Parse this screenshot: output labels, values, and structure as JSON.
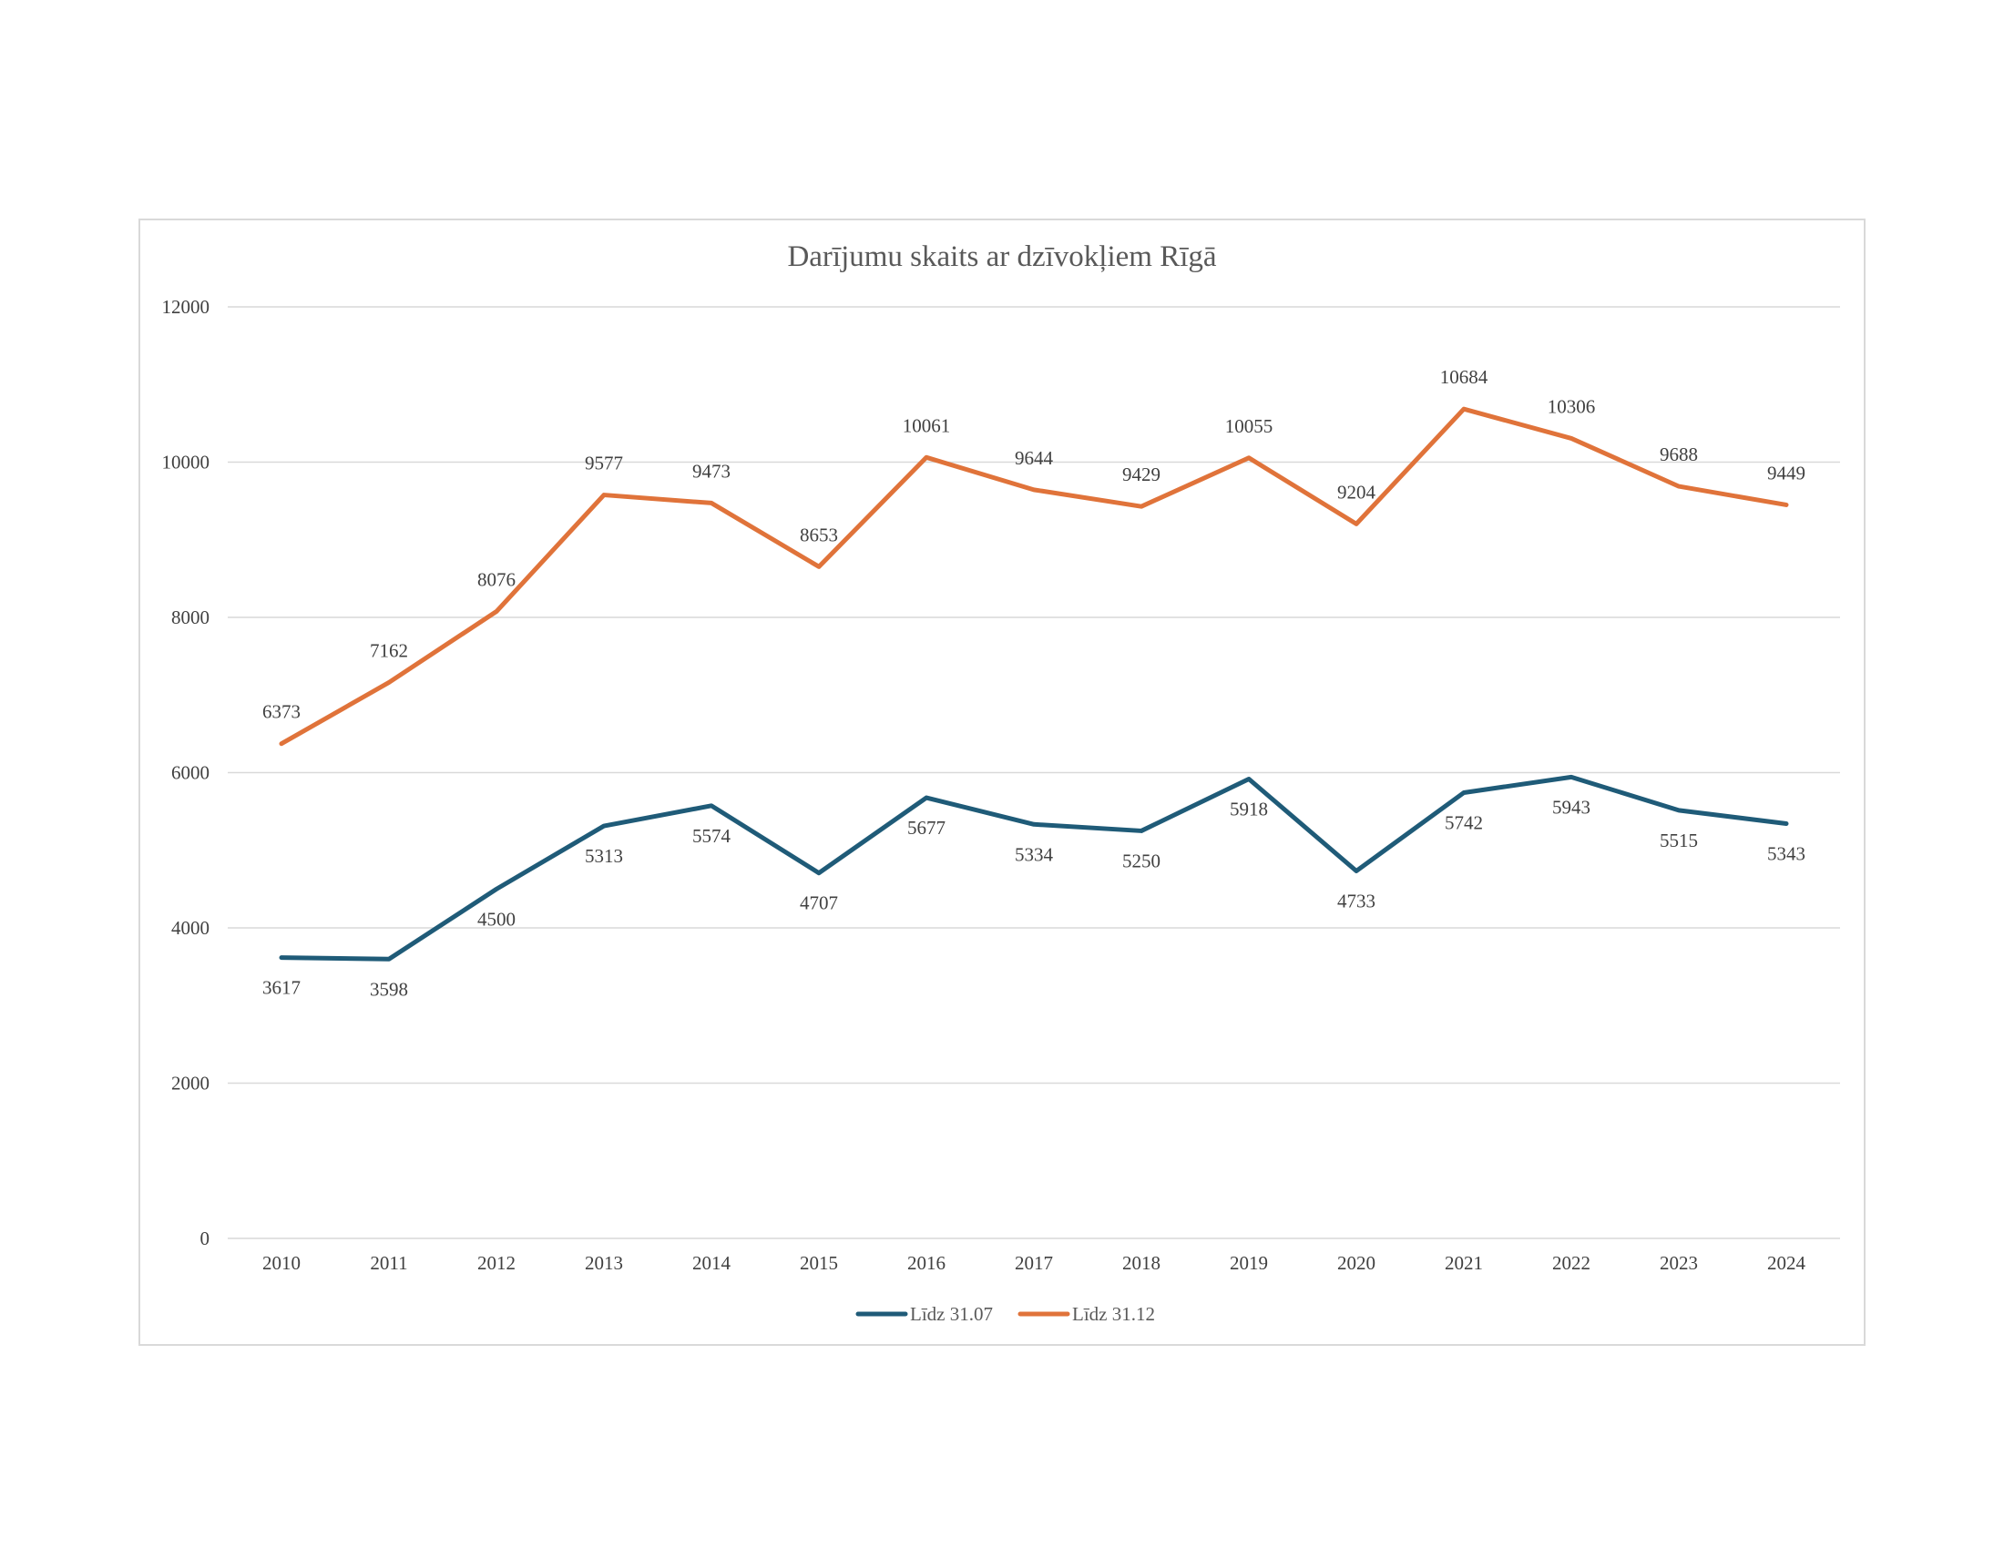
{
  "chart_data": {
    "type": "line",
    "title": "Darījumu skaits ar dzīvokļiem Rīgā",
    "xlabel": "",
    "ylabel": "",
    "ylim": [
      0,
      12000
    ],
    "yticks": [
      0,
      2000,
      4000,
      6000,
      8000,
      10000,
      12000
    ],
    "grid": true,
    "legend_position": "bottom",
    "categories": [
      "2010",
      "2011",
      "2012",
      "2013",
      "2014",
      "2015",
      "2016",
      "2017",
      "2018",
      "2019",
      "2020",
      "2021",
      "2022",
      "2023",
      "2024"
    ],
    "series": [
      {
        "name": "Līdz 31.07",
        "color": "#1f5b78",
        "label_position": "below",
        "values": [
          3617,
          3598,
          4500,
          5313,
          5574,
          4707,
          5677,
          5334,
          5250,
          5918,
          4733,
          5742,
          5943,
          5515,
          5343
        ]
      },
      {
        "name": "Līdz 31.12",
        "color": "#e0733a",
        "label_position": "above",
        "values": [
          6373,
          7162,
          8076,
          9577,
          9473,
          8653,
          10061,
          9644,
          9429,
          10055,
          9204,
          10684,
          10306,
          9688,
          9449
        ]
      }
    ],
    "colors": {
      "gridline": "#d9d9d9",
      "axis_text": "#404040",
      "title_text": "#595959"
    }
  }
}
